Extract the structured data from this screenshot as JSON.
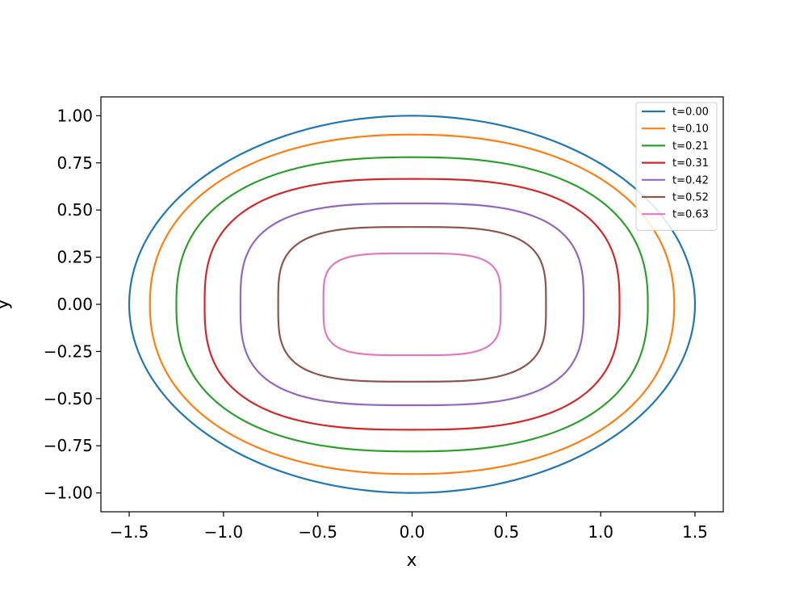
{
  "chart_data": {
    "type": "line",
    "title": "",
    "xlabel": "x",
    "ylabel": "y",
    "xlim": [
      -1.65,
      1.65
    ],
    "ylim": [
      -1.1,
      1.1
    ],
    "xticks": [
      -1.5,
      -1.0,
      -0.5,
      0.0,
      0.5,
      1.0,
      1.5
    ],
    "xtick_labels": [
      "−1.5",
      "−1.0",
      "−0.5",
      "0.0",
      "0.5",
      "1.0",
      "1.5"
    ],
    "yticks": [
      1.0,
      0.75,
      0.5,
      0.25,
      0.0,
      -0.25,
      -0.5,
      -0.75,
      -1.0
    ],
    "ytick_labels": [
      "1.00",
      "0.75",
      "0.50",
      "0.25",
      "0.00",
      "−0.25",
      "−0.50",
      "−0.75",
      "−1.00"
    ],
    "grid": false,
    "legend_position": "top-right",
    "series": [
      {
        "name": "t=0.00",
        "color": "#1f77b4",
        "a": 1.5,
        "b": 1.0,
        "n": 2.0
      },
      {
        "name": "t=0.10",
        "color": "#ff7f0e",
        "a": 1.39,
        "b": 0.9,
        "n": 2.2
      },
      {
        "name": "t=0.21",
        "color": "#2ca02c",
        "a": 1.25,
        "b": 0.78,
        "n": 2.45
      },
      {
        "name": "t=0.31",
        "color": "#d62728",
        "a": 1.1,
        "b": 0.665,
        "n": 2.75
      },
      {
        "name": "t=0.42",
        "color": "#9467bd",
        "a": 0.91,
        "b": 0.535,
        "n": 3.1
      },
      {
        "name": "t=0.52",
        "color": "#8c564b",
        "a": 0.71,
        "b": 0.41,
        "n": 3.5
      },
      {
        "name": "t=0.63",
        "color": "#e377c2",
        "a": 0.47,
        "b": 0.27,
        "n": 4.0
      }
    ]
  }
}
